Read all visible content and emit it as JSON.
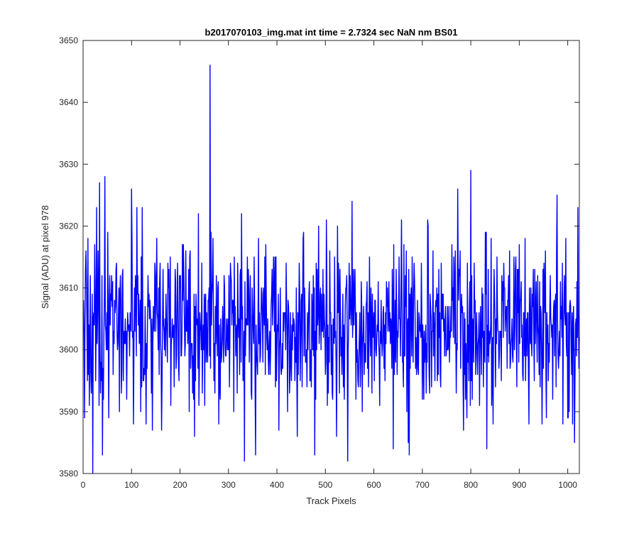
{
  "chart_data": {
    "type": "line",
    "title": "b2017070103_img.mat int time = 2.7324 sec  NaN nm BS01",
    "xlabel": "Track Pixels",
    "ylabel": "Signal (ADU) at pixel 978",
    "xlim": [
      0,
      1024
    ],
    "ylim": [
      3580,
      3650
    ],
    "xticks": [
      "0",
      "100",
      "200",
      "300",
      "400",
      "500",
      "600",
      "700",
      "800",
      "900",
      "1000"
    ],
    "yticks": [
      "3580",
      "3590",
      "3600",
      "3610",
      "3620",
      "3630",
      "3640",
      "3650"
    ],
    "grid": false,
    "series": [
      {
        "color": "#0000ff",
        "x_start": 1,
        "x_step": 1,
        "count": 1024,
        "mean": 3604,
        "std": 6.5,
        "seed": 20170701,
        "points": [
          [
            3,
            3589
          ],
          [
            7,
            3611
          ],
          [
            11,
            3596
          ],
          [
            15,
            3612
          ],
          [
            20,
            3580
          ],
          [
            24,
            3617
          ],
          [
            28,
            3623
          ],
          [
            34,
            3627
          ],
          [
            45,
            3628
          ],
          [
            62,
            3596
          ],
          [
            75,
            3590
          ],
          [
            100,
            3626
          ],
          [
            104,
            3588
          ],
          [
            122,
            3623
          ],
          [
            143,
            3587
          ],
          [
            228,
            3592
          ],
          [
            262,
            3646
          ],
          [
            280,
            3588
          ],
          [
            327,
            3622
          ],
          [
            333,
            3582
          ],
          [
            356,
            3583
          ],
          [
            442,
            3586
          ],
          [
            478,
            3583
          ],
          [
            530,
            3613
          ],
          [
            546,
            3582
          ],
          [
            555,
            3624
          ],
          [
            640,
            3584
          ],
          [
            657,
            3621
          ],
          [
            673,
            3583
          ],
          [
            722,
            3616
          ],
          [
            773,
            3626
          ],
          [
            785,
            3587
          ],
          [
            800,
            3629
          ],
          [
            833,
            3584
          ],
          [
            842,
            3618
          ],
          [
            912,
            3618
          ],
          [
            947,
            3588
          ],
          [
            978,
            3625
          ],
          [
            990,
            3588
          ],
          [
            1003,
            3590
          ],
          [
            1010,
            3588
          ],
          [
            1021,
            3623
          ]
        ]
      }
    ]
  }
}
